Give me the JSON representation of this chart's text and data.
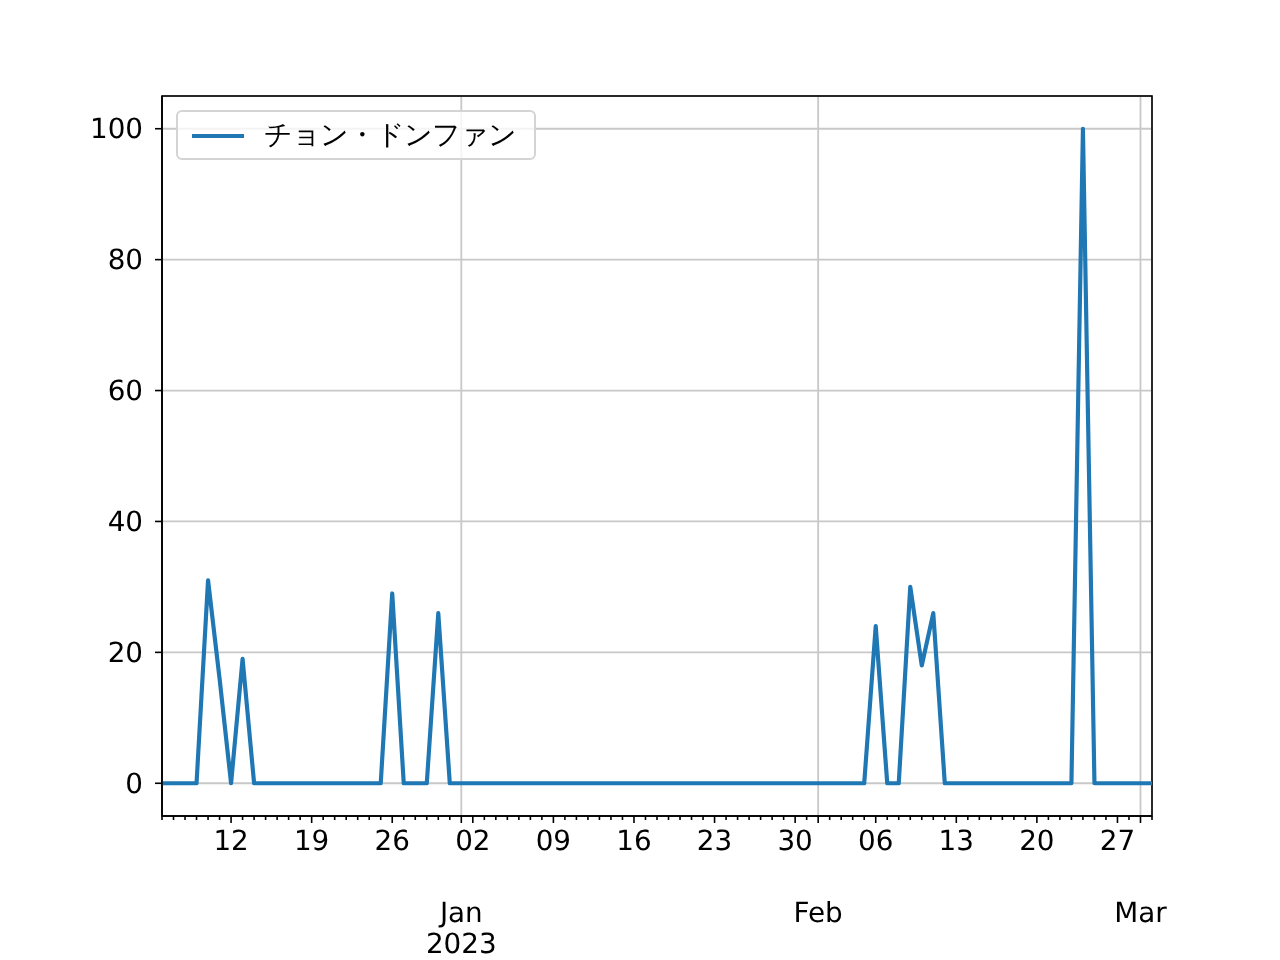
{
  "chart_data": {
    "type": "line",
    "x": [
      "2022-12-06",
      "2022-12-07",
      "2022-12-08",
      "2022-12-09",
      "2022-12-10",
      "2022-12-11",
      "2022-12-12",
      "2022-12-13",
      "2022-12-14",
      "2022-12-15",
      "2022-12-16",
      "2022-12-17",
      "2022-12-18",
      "2022-12-19",
      "2022-12-20",
      "2022-12-21",
      "2022-12-22",
      "2022-12-23",
      "2022-12-24",
      "2022-12-25",
      "2022-12-26",
      "2022-12-27",
      "2022-12-28",
      "2022-12-29",
      "2022-12-30",
      "2022-12-31",
      "2023-01-01",
      "2023-01-02",
      "2023-01-03",
      "2023-01-04",
      "2023-01-05",
      "2023-01-06",
      "2023-01-07",
      "2023-01-08",
      "2023-01-09",
      "2023-01-10",
      "2023-01-11",
      "2023-01-12",
      "2023-01-13",
      "2023-01-14",
      "2023-01-15",
      "2023-01-16",
      "2023-01-17",
      "2023-01-18",
      "2023-01-19",
      "2023-01-20",
      "2023-01-21",
      "2023-01-22",
      "2023-01-23",
      "2023-01-24",
      "2023-01-25",
      "2023-01-26",
      "2023-01-27",
      "2023-01-28",
      "2023-01-29",
      "2023-01-30",
      "2023-01-31",
      "2023-02-01",
      "2023-02-02",
      "2023-02-03",
      "2023-02-04",
      "2023-02-05",
      "2023-02-06",
      "2023-02-07",
      "2023-02-08",
      "2023-02-09",
      "2023-02-10",
      "2023-02-11",
      "2023-02-12",
      "2023-02-13",
      "2023-02-14",
      "2023-02-15",
      "2023-02-16",
      "2023-02-17",
      "2023-02-18",
      "2023-02-19",
      "2023-02-20",
      "2023-02-21",
      "2023-02-22",
      "2023-02-23",
      "2023-02-24",
      "2023-02-25",
      "2023-02-26",
      "2023-02-27",
      "2023-02-28",
      "2023-03-01",
      "2023-03-02"
    ],
    "series": [
      {
        "name": "チョン・ドンファン",
        "color": "#1f77b4",
        "values": [
          0,
          0,
          0,
          0,
          31,
          16,
          0,
          19,
          0,
          0,
          0,
          0,
          0,
          0,
          0,
          0,
          0,
          0,
          0,
          0,
          29,
          0,
          0,
          0,
          26,
          0,
          0,
          0,
          0,
          0,
          0,
          0,
          0,
          0,
          0,
          0,
          0,
          0,
          0,
          0,
          0,
          0,
          0,
          0,
          0,
          0,
          0,
          0,
          0,
          0,
          0,
          0,
          0,
          0,
          0,
          0,
          0,
          0,
          0,
          0,
          0,
          0,
          24,
          0,
          0,
          30,
          18,
          26,
          0,
          0,
          0,
          0,
          0,
          0,
          0,
          0,
          0,
          0,
          0,
          0,
          100,
          0,
          0,
          0,
          0,
          0,
          0
        ]
      }
    ],
    "xlim": [
      "2022-12-06",
      "2023-03-02"
    ],
    "xticks": [
      {
        "value": "2022-12-06",
        "label": null
      },
      {
        "value": "2022-12-07",
        "label": null
      },
      {
        "value": "2022-12-08",
        "label": null
      },
      {
        "value": "2022-12-09",
        "label": null
      },
      {
        "value": "2022-12-10",
        "label": null
      },
      {
        "value": "2022-12-11",
        "label": null
      },
      {
        "value": "2022-12-12",
        "label": "12"
      },
      {
        "value": "2022-12-13",
        "label": null
      },
      {
        "value": "2022-12-14",
        "label": null
      },
      {
        "value": "2022-12-15",
        "label": null
      },
      {
        "value": "2022-12-16",
        "label": null
      },
      {
        "value": "2022-12-17",
        "label": null
      },
      {
        "value": "2022-12-18",
        "label": null
      },
      {
        "value": "2022-12-19",
        "label": "19"
      },
      {
        "value": "2022-12-20",
        "label": null
      },
      {
        "value": "2022-12-21",
        "label": null
      },
      {
        "value": "2022-12-22",
        "label": null
      },
      {
        "value": "2022-12-23",
        "label": null
      },
      {
        "value": "2022-12-24",
        "label": null
      },
      {
        "value": "2022-12-25",
        "label": null
      },
      {
        "value": "2022-12-26",
        "label": "26"
      },
      {
        "value": "2022-12-27",
        "label": null
      },
      {
        "value": "2022-12-28",
        "label": null
      },
      {
        "value": "2022-12-29",
        "label": null
      },
      {
        "value": "2022-12-30",
        "label": null
      },
      {
        "value": "2022-12-31",
        "label": null
      },
      {
        "value": "2023-01-02",
        "label": "02"
      },
      {
        "value": "2023-01-03",
        "label": null
      },
      {
        "value": "2023-01-04",
        "label": null
      },
      {
        "value": "2023-01-05",
        "label": null
      },
      {
        "value": "2023-01-06",
        "label": null
      },
      {
        "value": "2023-01-07",
        "label": null
      },
      {
        "value": "2023-01-08",
        "label": null
      },
      {
        "value": "2023-01-09",
        "label": "09"
      },
      {
        "value": "2023-01-10",
        "label": null
      },
      {
        "value": "2023-01-11",
        "label": null
      },
      {
        "value": "2023-01-12",
        "label": null
      },
      {
        "value": "2023-01-13",
        "label": null
      },
      {
        "value": "2023-01-14",
        "label": null
      },
      {
        "value": "2023-01-15",
        "label": null
      },
      {
        "value": "2023-01-16",
        "label": "16"
      },
      {
        "value": "2023-01-17",
        "label": null
      },
      {
        "value": "2023-01-18",
        "label": null
      },
      {
        "value": "2023-01-19",
        "label": null
      },
      {
        "value": "2023-01-20",
        "label": null
      },
      {
        "value": "2023-01-21",
        "label": null
      },
      {
        "value": "2023-01-22",
        "label": null
      },
      {
        "value": "2023-01-23",
        "label": "23"
      },
      {
        "value": "2023-01-24",
        "label": null
      },
      {
        "value": "2023-01-25",
        "label": null
      },
      {
        "value": "2023-01-26",
        "label": null
      },
      {
        "value": "2023-01-27",
        "label": null
      },
      {
        "value": "2023-01-28",
        "label": null
      },
      {
        "value": "2023-01-29",
        "label": null
      },
      {
        "value": "2023-01-30",
        "label": "30"
      },
      {
        "value": "2023-01-31",
        "label": null
      },
      {
        "value": "2023-02-02",
        "label": null
      },
      {
        "value": "2023-02-03",
        "label": null
      },
      {
        "value": "2023-02-04",
        "label": null
      },
      {
        "value": "2023-02-05",
        "label": null
      },
      {
        "value": "2023-02-06",
        "label": "06"
      },
      {
        "value": "2023-02-07",
        "label": null
      },
      {
        "value": "2023-02-08",
        "label": null
      },
      {
        "value": "2023-02-09",
        "label": null
      },
      {
        "value": "2023-02-10",
        "label": null
      },
      {
        "value": "2023-02-11",
        "label": null
      },
      {
        "value": "2023-02-12",
        "label": null
      },
      {
        "value": "2023-02-13",
        "label": "13"
      },
      {
        "value": "2023-02-14",
        "label": null
      },
      {
        "value": "2023-02-15",
        "label": null
      },
      {
        "value": "2023-02-16",
        "label": null
      },
      {
        "value": "2023-02-17",
        "label": null
      },
      {
        "value": "2023-02-18",
        "label": null
      },
      {
        "value": "2023-02-19",
        "label": null
      },
      {
        "value": "2023-02-20",
        "label": "20"
      },
      {
        "value": "2023-02-21",
        "label": null
      },
      {
        "value": "2023-02-22",
        "label": null
      },
      {
        "value": "2023-02-23",
        "label": null
      },
      {
        "value": "2023-02-24",
        "label": null
      },
      {
        "value": "2023-02-25",
        "label": null
      },
      {
        "value": "2023-02-26",
        "label": null
      },
      {
        "value": "2023-02-27",
        "label": "27"
      },
      {
        "value": "2023-02-28",
        "label": null
      },
      {
        "value": "2023-03-02",
        "label": null
      }
    ],
    "x2lim": [
      "2022-12-06",
      "2023-03-02"
    ],
    "x2ticks": [
      {
        "value": "2023-01-01",
        "label": "Jan\n2023"
      },
      {
        "value": "2023-02-01",
        "label": "Feb"
      },
      {
        "value": "2023-03-01",
        "label": "Mar"
      }
    ],
    "ylim": [
      -5,
      105
    ],
    "yticks": [
      0,
      20,
      40,
      60,
      80,
      100
    ],
    "grid": true,
    "legend": "top left"
  }
}
